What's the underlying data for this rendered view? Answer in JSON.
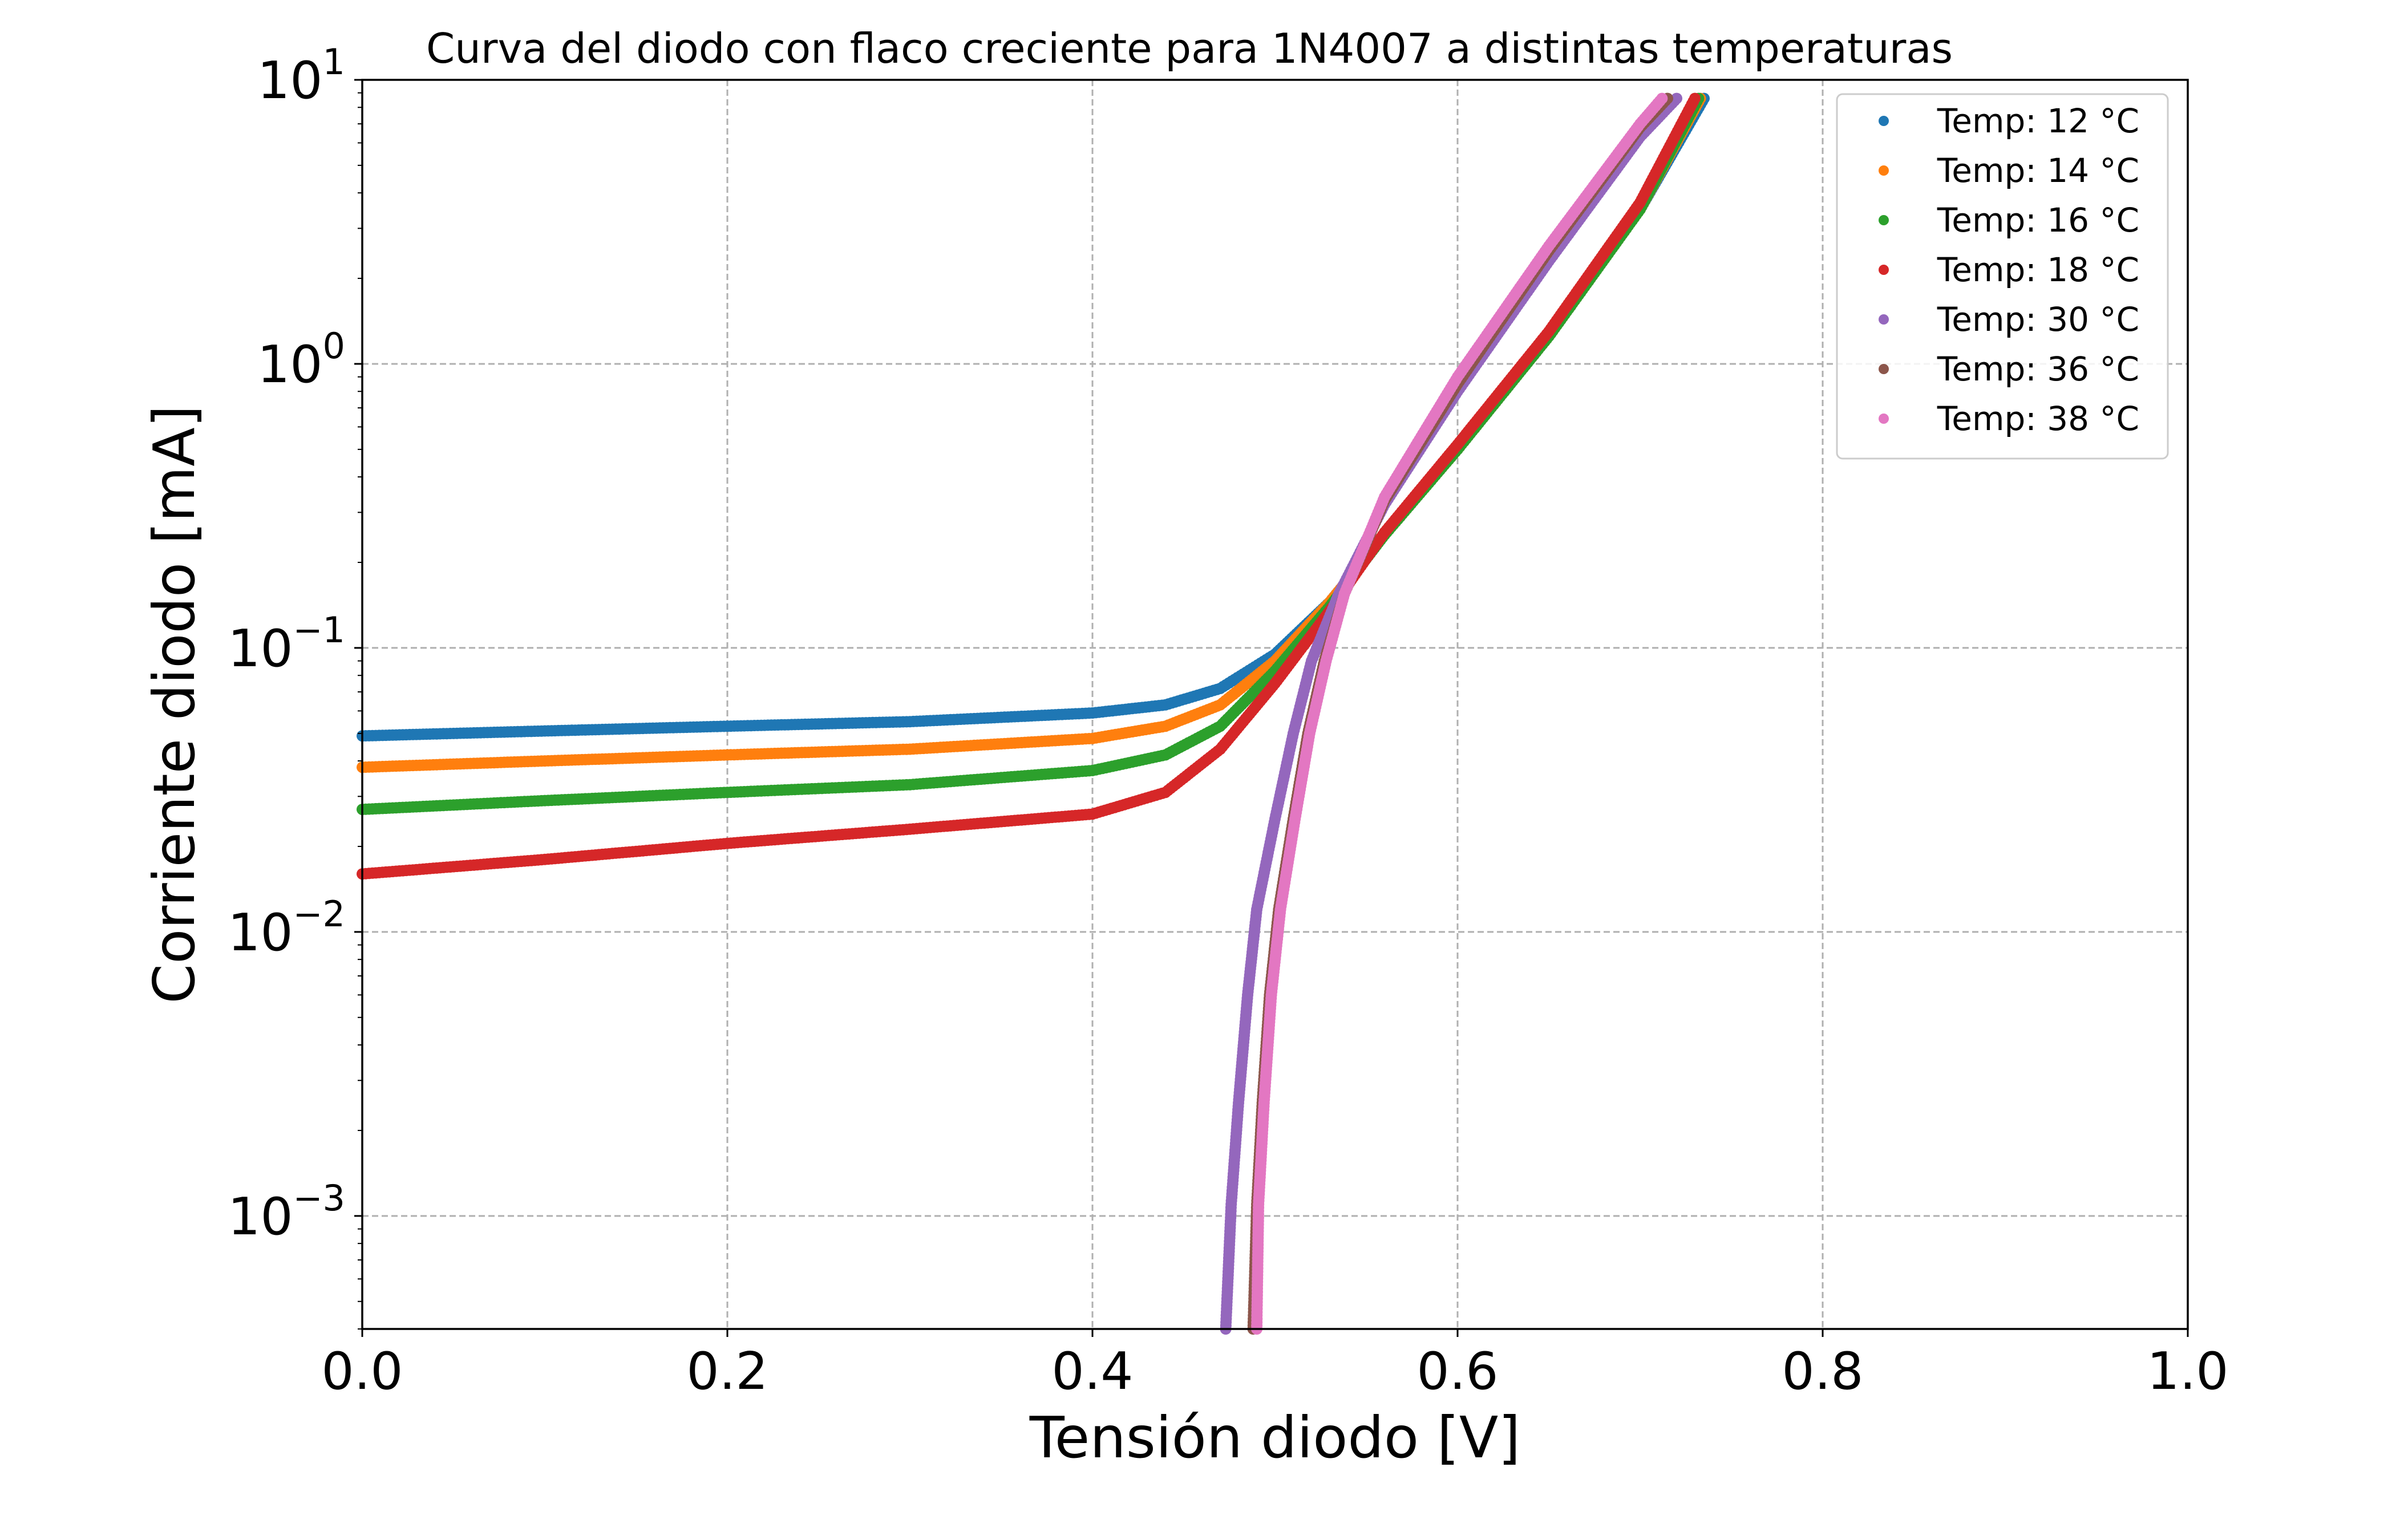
{
  "chart_data": {
    "type": "scatter",
    "title": "Curva del diodo con flaco creciente para 1N4007 a distintas temperaturas",
    "xlabel": "Tensión diodo [V]",
    "ylabel": "Corriente diodo [mA]",
    "xlim": [
      0.0,
      1.0
    ],
    "ylim": [
      0.0004,
      10.0
    ],
    "yscale": "log",
    "grid": true,
    "legend_position": "top-right",
    "x_ticks": [
      "0.0",
      "0.2",
      "0.4",
      "0.6",
      "0.8",
      "1.0"
    ],
    "x_tick_values": [
      0.0,
      0.2,
      0.4,
      0.6,
      0.8,
      1.0
    ],
    "y_ticks": [
      {
        "base": "10",
        "exp": "1",
        "value": 10
      },
      {
        "base": "10",
        "exp": "0",
        "value": 1
      },
      {
        "base": "10",
        "exp": "−1",
        "value": 0.1
      },
      {
        "base": "10",
        "exp": "−2",
        "value": 0.01
      },
      {
        "base": "10",
        "exp": "−3",
        "value": 0.001
      }
    ],
    "series": [
      {
        "name": "Temp: 12 °C",
        "color": "#1f77b4",
        "points": [
          [
            0.0,
            0.049
          ],
          [
            0.1,
            0.051
          ],
          [
            0.2,
            0.053
          ],
          [
            0.3,
            0.055
          ],
          [
            0.4,
            0.059
          ],
          [
            0.44,
            0.063
          ],
          [
            0.47,
            0.072
          ],
          [
            0.5,
            0.095
          ],
          [
            0.53,
            0.145
          ],
          [
            0.56,
            0.25
          ],
          [
            0.6,
            0.5
          ],
          [
            0.65,
            1.25
          ],
          [
            0.7,
            3.5
          ],
          [
            0.735,
            8.6
          ]
        ]
      },
      {
        "name": "Temp: 14 °C",
        "color": "#ff7f0e",
        "points": [
          [
            0.0,
            0.038
          ],
          [
            0.1,
            0.04
          ],
          [
            0.2,
            0.042
          ],
          [
            0.3,
            0.044
          ],
          [
            0.4,
            0.048
          ],
          [
            0.44,
            0.053
          ],
          [
            0.47,
            0.063
          ],
          [
            0.5,
            0.09
          ],
          [
            0.53,
            0.145
          ],
          [
            0.56,
            0.25
          ],
          [
            0.6,
            0.5
          ],
          [
            0.65,
            1.25
          ],
          [
            0.7,
            3.5
          ],
          [
            0.733,
            8.6
          ]
        ]
      },
      {
        "name": "Temp: 16 °C",
        "color": "#2ca02c",
        "points": [
          [
            0.0,
            0.027
          ],
          [
            0.1,
            0.029
          ],
          [
            0.2,
            0.031
          ],
          [
            0.3,
            0.033
          ],
          [
            0.4,
            0.037
          ],
          [
            0.44,
            0.042
          ],
          [
            0.47,
            0.053
          ],
          [
            0.5,
            0.083
          ],
          [
            0.53,
            0.14
          ],
          [
            0.56,
            0.25
          ],
          [
            0.6,
            0.5
          ],
          [
            0.65,
            1.25
          ],
          [
            0.7,
            3.5
          ],
          [
            0.732,
            8.6
          ]
        ]
      },
      {
        "name": "Temp: 18 °C",
        "color": "#d62728",
        "points": [
          [
            0.0,
            0.016
          ],
          [
            0.1,
            0.018
          ],
          [
            0.2,
            0.0205
          ],
          [
            0.3,
            0.023
          ],
          [
            0.4,
            0.026
          ],
          [
            0.44,
            0.031
          ],
          [
            0.47,
            0.044
          ],
          [
            0.5,
            0.075
          ],
          [
            0.53,
            0.135
          ],
          [
            0.56,
            0.255
          ],
          [
            0.6,
            0.52
          ],
          [
            0.65,
            1.3
          ],
          [
            0.7,
            3.7
          ],
          [
            0.73,
            8.6
          ]
        ]
      },
      {
        "name": "Temp: 30 °C",
        "color": "#9467bd",
        "points": [
          [
            0.473,
            0.0004
          ],
          [
            0.476,
            0.0011
          ],
          [
            0.48,
            0.0025
          ],
          [
            0.485,
            0.006
          ],
          [
            0.49,
            0.012
          ],
          [
            0.5,
            0.025
          ],
          [
            0.51,
            0.05
          ],
          [
            0.52,
            0.09
          ],
          [
            0.535,
            0.155
          ],
          [
            0.56,
            0.32
          ],
          [
            0.6,
            0.8
          ],
          [
            0.65,
            2.3
          ],
          [
            0.7,
            6.3
          ],
          [
            0.72,
            8.6
          ]
        ]
      },
      {
        "name": "Temp: 36 °C",
        "color": "#8c564b",
        "points": [
          [
            0.488,
            0.0004
          ],
          [
            0.49,
            0.0011
          ],
          [
            0.493,
            0.0025
          ],
          [
            0.497,
            0.006
          ],
          [
            0.502,
            0.012
          ],
          [
            0.51,
            0.025
          ],
          [
            0.518,
            0.05
          ],
          [
            0.527,
            0.09
          ],
          [
            0.538,
            0.155
          ],
          [
            0.56,
            0.33
          ],
          [
            0.6,
            0.85
          ],
          [
            0.65,
            2.5
          ],
          [
            0.7,
            6.8
          ],
          [
            0.715,
            8.6
          ]
        ]
      },
      {
        "name": "Temp: 38 °C",
        "color": "#e377c2",
        "points": [
          [
            0.49,
            0.0004
          ],
          [
            0.491,
            0.0011
          ],
          [
            0.494,
            0.0025
          ],
          [
            0.498,
            0.006
          ],
          [
            0.503,
            0.012
          ],
          [
            0.511,
            0.025
          ],
          [
            0.519,
            0.05
          ],
          [
            0.528,
            0.09
          ],
          [
            0.538,
            0.155
          ],
          [
            0.56,
            0.34
          ],
          [
            0.6,
            0.9
          ],
          [
            0.65,
            2.6
          ],
          [
            0.7,
            7.0
          ],
          [
            0.712,
            8.6
          ]
        ]
      }
    ]
  }
}
